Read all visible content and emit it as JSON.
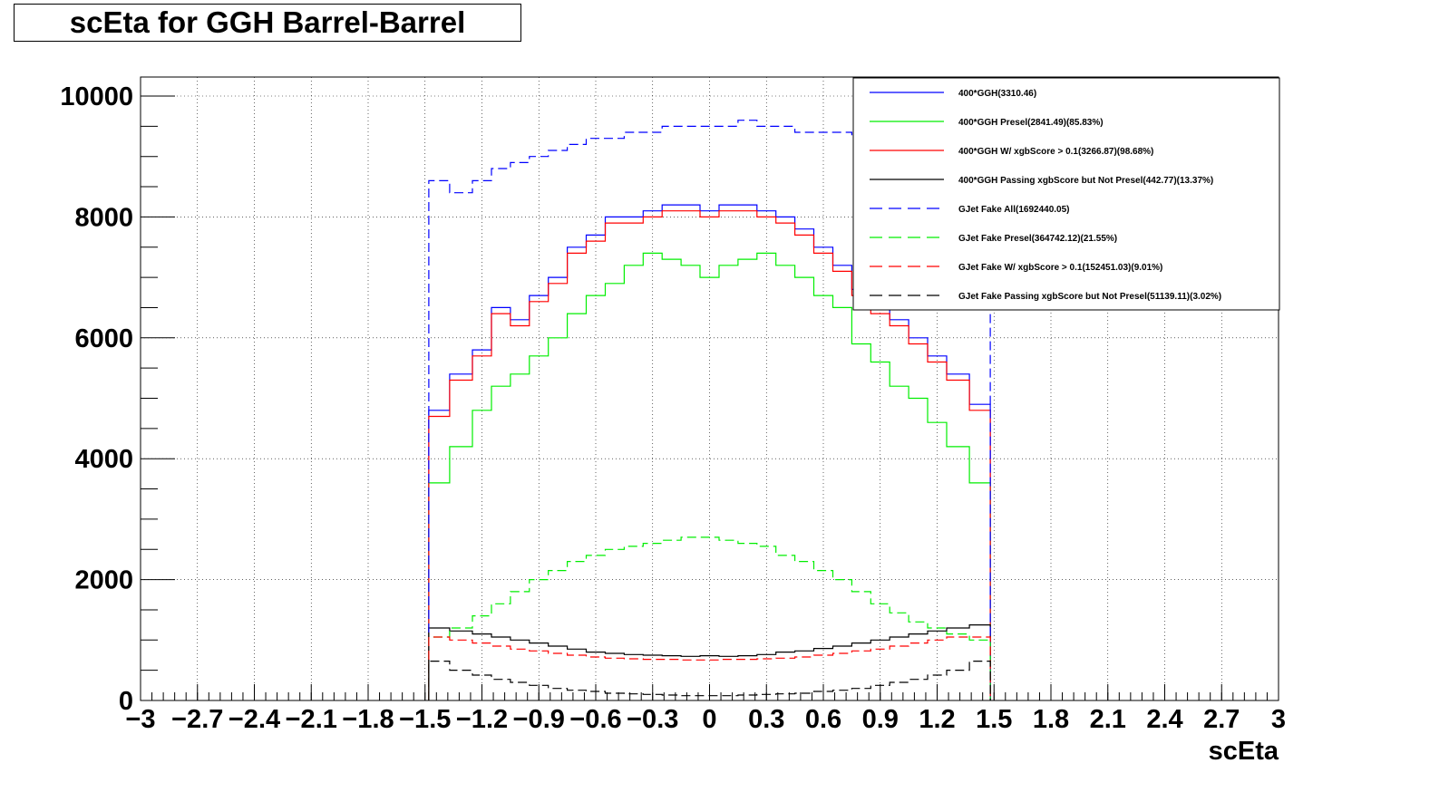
{
  "chart_data": {
    "type": "line",
    "title": "scEta for GGH Barrel-Barrel",
    "xlabel": "scEta",
    "ylabel": "",
    "xlim": [
      -3,
      3
    ],
    "ylim": [
      0,
      10000
    ],
    "grid": true,
    "legend_position": "top-right",
    "x_tick_labels": [
      "−3",
      "−2.7",
      "−2.4",
      "−2.1",
      "−1.8",
      "−1.5",
      "−1.2",
      "−0.9",
      "−0.6",
      "−0.3",
      "0",
      "0.3",
      "0.6",
      "0.9",
      "1.2",
      "1.5",
      "1.8",
      "2.1",
      "2.4",
      "2.7",
      "3"
    ],
    "x_tick_values": [
      -3,
      -2.7,
      -2.4,
      -2.1,
      -1.8,
      -1.5,
      -1.2,
      -0.9,
      -0.6,
      -0.3,
      0,
      0.3,
      0.6,
      0.9,
      1.2,
      1.5,
      1.8,
      2.1,
      2.4,
      2.7,
      3
    ],
    "y_tick_labels": [
      "0",
      "2000",
      "4000",
      "6000",
      "8000",
      "10000"
    ],
    "y_tick_values": [
      0,
      2000,
      4000,
      6000,
      8000,
      10000
    ],
    "x": [
      -1.44,
      -1.3,
      -1.2,
      -1.1,
      -1.0,
      -0.9,
      -0.8,
      -0.7,
      -0.6,
      -0.5,
      -0.4,
      -0.3,
      -0.2,
      -0.1,
      0.0,
      0.1,
      0.2,
      0.3,
      0.4,
      0.5,
      0.6,
      0.7,
      0.8,
      0.9,
      1.0,
      1.1,
      1.2,
      1.3,
      1.44
    ],
    "series": [
      {
        "name": "400*GGH(3310.46)",
        "color": "#0000ff",
        "dash": "solid",
        "values": [
          4800,
          5400,
          5800,
          6500,
          6300,
          6700,
          7000,
          7500,
          7700,
          8000,
          8000,
          8100,
          8200,
          8200,
          8100,
          8200,
          8200,
          8100,
          8000,
          7800,
          7500,
          7200,
          6800,
          6500,
          6300,
          6000,
          5700,
          5400,
          4900
        ]
      },
      {
        "name": "400*GGH Presel(2841.49)(85.83%)",
        "color": "#00ee00",
        "dash": "solid",
        "values": [
          3600,
          4200,
          4800,
          5200,
          5400,
          5700,
          6000,
          6400,
          6700,
          6900,
          7200,
          7400,
          7300,
          7200,
          7000,
          7200,
          7300,
          7400,
          7200,
          7000,
          6700,
          6500,
          5900,
          5600,
          5200,
          5000,
          4600,
          4200,
          3600
        ]
      },
      {
        "name": "400*GGH W/ xgbScore > 0.1(3266.87)(98.68%)",
        "color": "#ff0000",
        "dash": "solid",
        "values": [
          4700,
          5300,
          5700,
          6400,
          6200,
          6600,
          6900,
          7400,
          7600,
          7900,
          7900,
          8000,
          8100,
          8100,
          8000,
          8100,
          8100,
          8000,
          7900,
          7700,
          7400,
          7100,
          6700,
          6400,
          6200,
          5900,
          5600,
          5300,
          4800
        ]
      },
      {
        "name": "400*GGH Passing xgbScore but Not Presel(442.77)(13.37%)",
        "color": "#000000",
        "dash": "solid",
        "values": [
          1200,
          1150,
          1100,
          1050,
          1000,
          950,
          900,
          850,
          800,
          780,
          760,
          750,
          740,
          730,
          740,
          730,
          740,
          760,
          800,
          820,
          860,
          900,
          950,
          1000,
          1050,
          1100,
          1150,
          1200,
          1250
        ]
      },
      {
        "name": "GJet Fake All(1692440.05)",
        "color": "#0000ff",
        "dash": "dashed",
        "values": [
          8600,
          8400,
          8600,
          8800,
          8900,
          9000,
          9100,
          9200,
          9300,
          9300,
          9400,
          9400,
          9500,
          9500,
          9500,
          9500,
          9600,
          9500,
          9500,
          9400,
          9400,
          9400,
          9300,
          9300,
          9200,
          9100,
          9000,
          8800,
          8600
        ]
      },
      {
        "name": "GJet Fake Presel(364742.12)(21.55%)",
        "color": "#00ee00",
        "dash": "dashed",
        "values": [
          1050,
          1200,
          1400,
          1600,
          1800,
          2000,
          2150,
          2300,
          2400,
          2500,
          2550,
          2600,
          2650,
          2700,
          2700,
          2650,
          2600,
          2550,
          2400,
          2300,
          2150,
          2000,
          1800,
          1600,
          1450,
          1300,
          1200,
          1100,
          1000
        ]
      },
      {
        "name": "GJet Fake W/ xgbScore > 0.1(152451.03)(9.01%)",
        "color": "#ff0000",
        "dash": "dashed",
        "values": [
          1050,
          1000,
          950,
          900,
          850,
          820,
          780,
          750,
          720,
          700,
          690,
          680,
          680,
          670,
          670,
          680,
          680,
          690,
          700,
          720,
          750,
          780,
          820,
          850,
          900,
          950,
          1000,
          1050,
          1050
        ]
      },
      {
        "name": "GJet Fake Passing xgbScore but Not Presel(51139.11)(3.02%)",
        "color": "#000000",
        "dash": "dashed",
        "values": [
          650,
          500,
          420,
          350,
          300,
          250,
          200,
          170,
          150,
          120,
          110,
          100,
          90,
          80,
          80,
          80,
          90,
          100,
          110,
          120,
          150,
          170,
          200,
          250,
          300,
          350,
          420,
          500,
          650
        ]
      }
    ]
  }
}
